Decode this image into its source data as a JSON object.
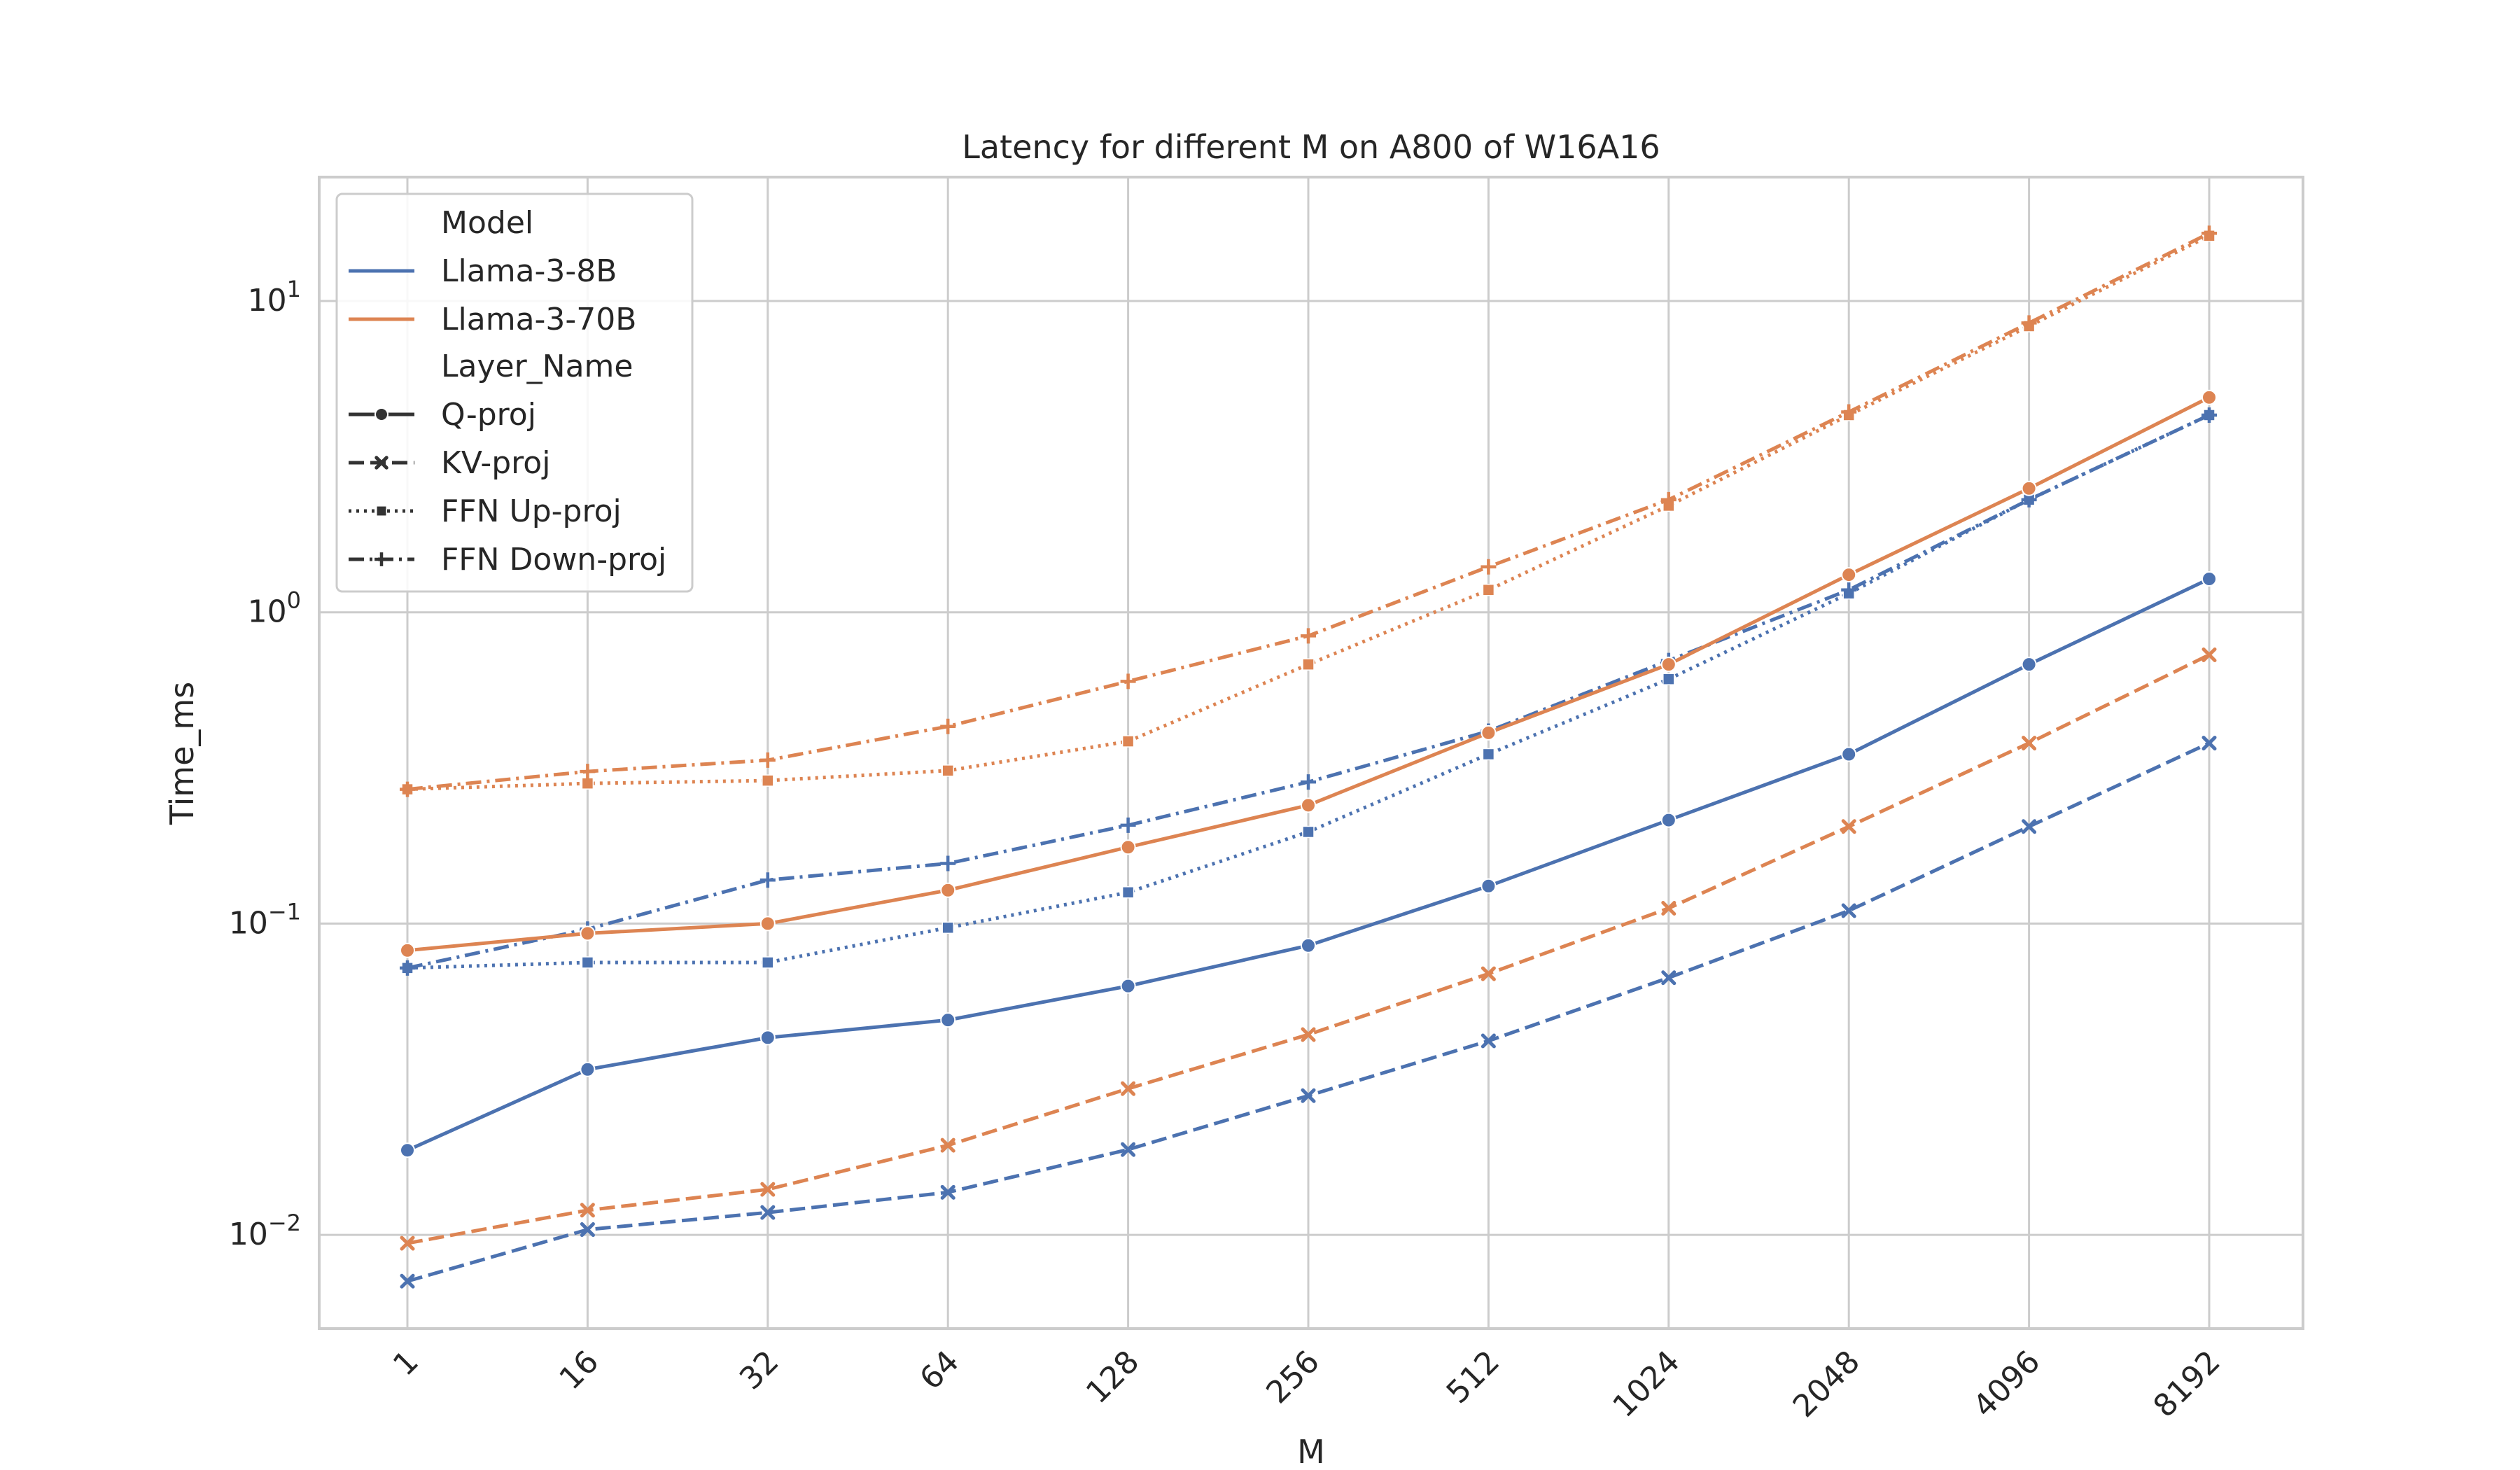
{
  "chart_data": {
    "type": "line",
    "title": "Latency for different M on A800 of W16A16",
    "xlabel": "M",
    "ylabel": "Time_ms",
    "x": [
      "1",
      "16",
      "32",
      "64",
      "128",
      "256",
      "512",
      "1024",
      "2048",
      "4096",
      "8192"
    ],
    "y_scale": "log",
    "ylim": [
      0.005,
      25
    ],
    "y_ticks": [
      {
        "value": 0.01,
        "base": "10",
        "exp": "−2"
      },
      {
        "value": 0.1,
        "base": "10",
        "exp": "−1"
      },
      {
        "value": 1,
        "base": "10",
        "exp": "0"
      },
      {
        "value": 10,
        "base": "10",
        "exp": "1"
      }
    ],
    "grid": true,
    "legend": {
      "placement": "top-left",
      "hue_title": "Model",
      "style_title": "Layer_Name",
      "models": [
        {
          "name": "Llama-3-8B",
          "color": "#4c72b0"
        },
        {
          "name": "Llama-3-70B",
          "color": "#dd8452"
        }
      ],
      "layers": [
        {
          "name": "Q-proj",
          "dash": "solid",
          "marker": "circle"
        },
        {
          "name": "KV-proj",
          "dash": "dashed",
          "marker": "x"
        },
        {
          "name": "FFN Up-proj",
          "dash": "dotted",
          "marker": "square"
        },
        {
          "name": "FFN Down-proj",
          "dash": "dashdot",
          "marker": "plus"
        }
      ]
    },
    "series": [
      {
        "model": "Llama-3-8B",
        "layer": "Q-proj",
        "values": [
          0.0187,
          0.034,
          0.043,
          0.049,
          0.063,
          0.085,
          0.132,
          0.215,
          0.35,
          0.68,
          1.28
        ]
      },
      {
        "model": "Llama-3-8B",
        "layer": "KV-proj",
        "values": [
          0.0071,
          0.0104,
          0.0118,
          0.0137,
          0.0188,
          0.028,
          0.042,
          0.067,
          0.11,
          0.205,
          0.38
        ]
      },
      {
        "model": "Llama-3-8B",
        "layer": "FFN Up-proj",
        "values": [
          0.072,
          0.075,
          0.075,
          0.097,
          0.126,
          0.197,
          0.35,
          0.61,
          1.15,
          2.3,
          4.3
        ]
      },
      {
        "model": "Llama-3-8B",
        "layer": "FFN Down-proj",
        "values": [
          0.072,
          0.096,
          0.138,
          0.156,
          0.207,
          0.285,
          0.415,
          0.7,
          1.18,
          2.3,
          4.3
        ]
      },
      {
        "model": "Llama-3-70B",
        "layer": "Q-proj",
        "values": [
          0.082,
          0.093,
          0.1,
          0.128,
          0.176,
          0.24,
          0.41,
          0.68,
          1.32,
          2.5,
          4.9
        ]
      },
      {
        "model": "Llama-3-70B",
        "layer": "KV-proj",
        "values": [
          0.0094,
          0.012,
          0.014,
          0.0194,
          0.0295,
          0.044,
          0.069,
          0.112,
          0.205,
          0.38,
          0.73
        ]
      },
      {
        "model": "Llama-3-70B",
        "layer": "FFN Up-proj",
        "values": [
          0.27,
          0.282,
          0.288,
          0.31,
          0.385,
          0.68,
          1.18,
          2.2,
          4.3,
          8.3,
          16.2
        ]
      },
      {
        "model": "Llama-3-70B",
        "layer": "FFN Down-proj",
        "values": [
          0.27,
          0.308,
          0.335,
          0.43,
          0.6,
          0.84,
          1.4,
          2.3,
          4.4,
          8.5,
          16.5
        ]
      }
    ]
  }
}
